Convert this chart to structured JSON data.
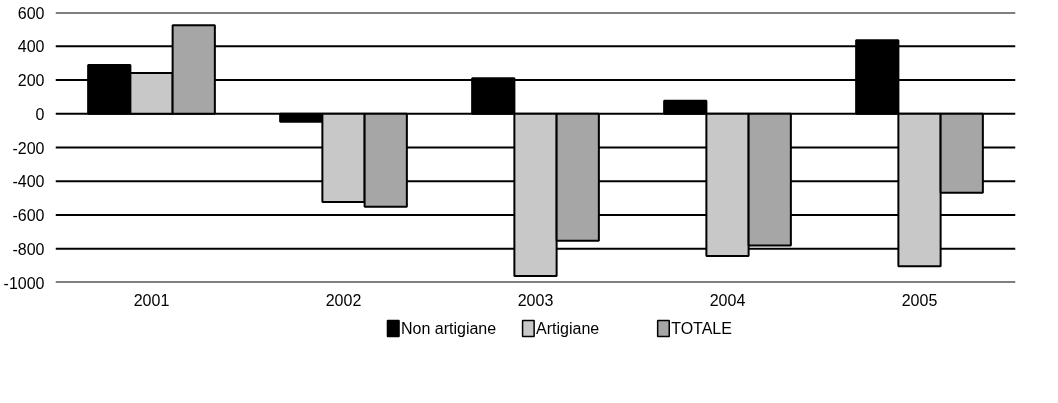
{
  "chart_data": {
    "type": "bar",
    "categories": [
      "2001",
      "2002",
      "2003",
      "2004",
      "2005"
    ],
    "series": [
      {
        "name": "Non artigiane",
        "color": "#000000",
        "values": [
          289,
          -47,
          211,
          77,
          436
        ]
      },
      {
        "name": "Artigiane",
        "color": "#c8c8c8",
        "values": [
          241,
          -523,
          -962,
          -843,
          -904
        ]
      },
      {
        "name": "TOTALE",
        "color": "#a6a6a6",
        "values": [
          525,
          -551,
          -753,
          -781,
          -468
        ]
      }
    ],
    "ylim": [
      -1000,
      600
    ],
    "yticks": [
      -1000,
      -800,
      -600,
      -400,
      -200,
      0,
      200,
      400,
      600
    ],
    "grid": "y",
    "legend": "bottom"
  }
}
